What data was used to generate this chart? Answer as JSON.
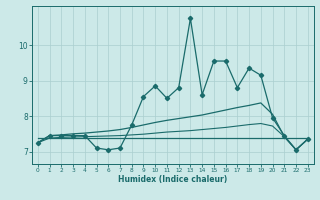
{
  "title": "",
  "xlabel": "Humidex (Indice chaleur)",
  "ylabel": "",
  "bg_color": "#cce9e8",
  "grid_color": "#aacfcf",
  "line_color": "#1a6b6b",
  "xlim": [
    -0.5,
    23.5
  ],
  "ylim": [
    6.65,
    11.1
  ],
  "xticks": [
    0,
    1,
    2,
    3,
    4,
    5,
    6,
    7,
    8,
    9,
    10,
    11,
    12,
    13,
    14,
    15,
    16,
    17,
    18,
    19,
    20,
    21,
    22,
    23
  ],
  "yticks": [
    7,
    8,
    9,
    10
  ],
  "x_main": [
    0,
    1,
    2,
    3,
    4,
    5,
    6,
    7,
    8,
    9,
    10,
    11,
    12,
    13,
    14,
    15,
    16,
    17,
    18,
    19,
    20,
    21,
    22,
    23
  ],
  "y_zigzag": [
    7.25,
    7.45,
    7.45,
    7.45,
    7.45,
    7.1,
    7.05,
    7.1,
    7.75,
    8.55,
    8.85,
    8.5,
    8.8,
    10.75,
    8.6,
    9.55,
    9.55,
    8.8,
    9.35,
    9.15,
    7.95,
    7.45,
    7.05,
    7.35
  ],
  "y_upper": [
    7.25,
    7.45,
    7.47,
    7.5,
    7.52,
    7.55,
    7.58,
    7.62,
    7.68,
    7.75,
    7.82,
    7.88,
    7.93,
    7.98,
    8.03,
    8.1,
    8.17,
    8.24,
    8.3,
    8.37,
    8.05,
    7.42,
    7.05,
    7.35
  ],
  "y_lower": [
    7.25,
    7.38,
    7.4,
    7.41,
    7.42,
    7.43,
    7.44,
    7.45,
    7.47,
    7.49,
    7.52,
    7.55,
    7.57,
    7.59,
    7.62,
    7.65,
    7.68,
    7.72,
    7.76,
    7.79,
    7.72,
    7.42,
    7.05,
    7.35
  ],
  "y_flat": [
    7.38,
    7.38,
    7.38,
    7.38,
    7.38,
    7.38,
    7.38,
    7.38,
    7.38,
    7.38,
    7.38,
    7.38,
    7.38,
    7.38,
    7.38,
    7.38,
    7.38,
    7.38,
    7.38,
    7.38,
    7.38,
    7.38,
    7.38,
    7.38
  ]
}
